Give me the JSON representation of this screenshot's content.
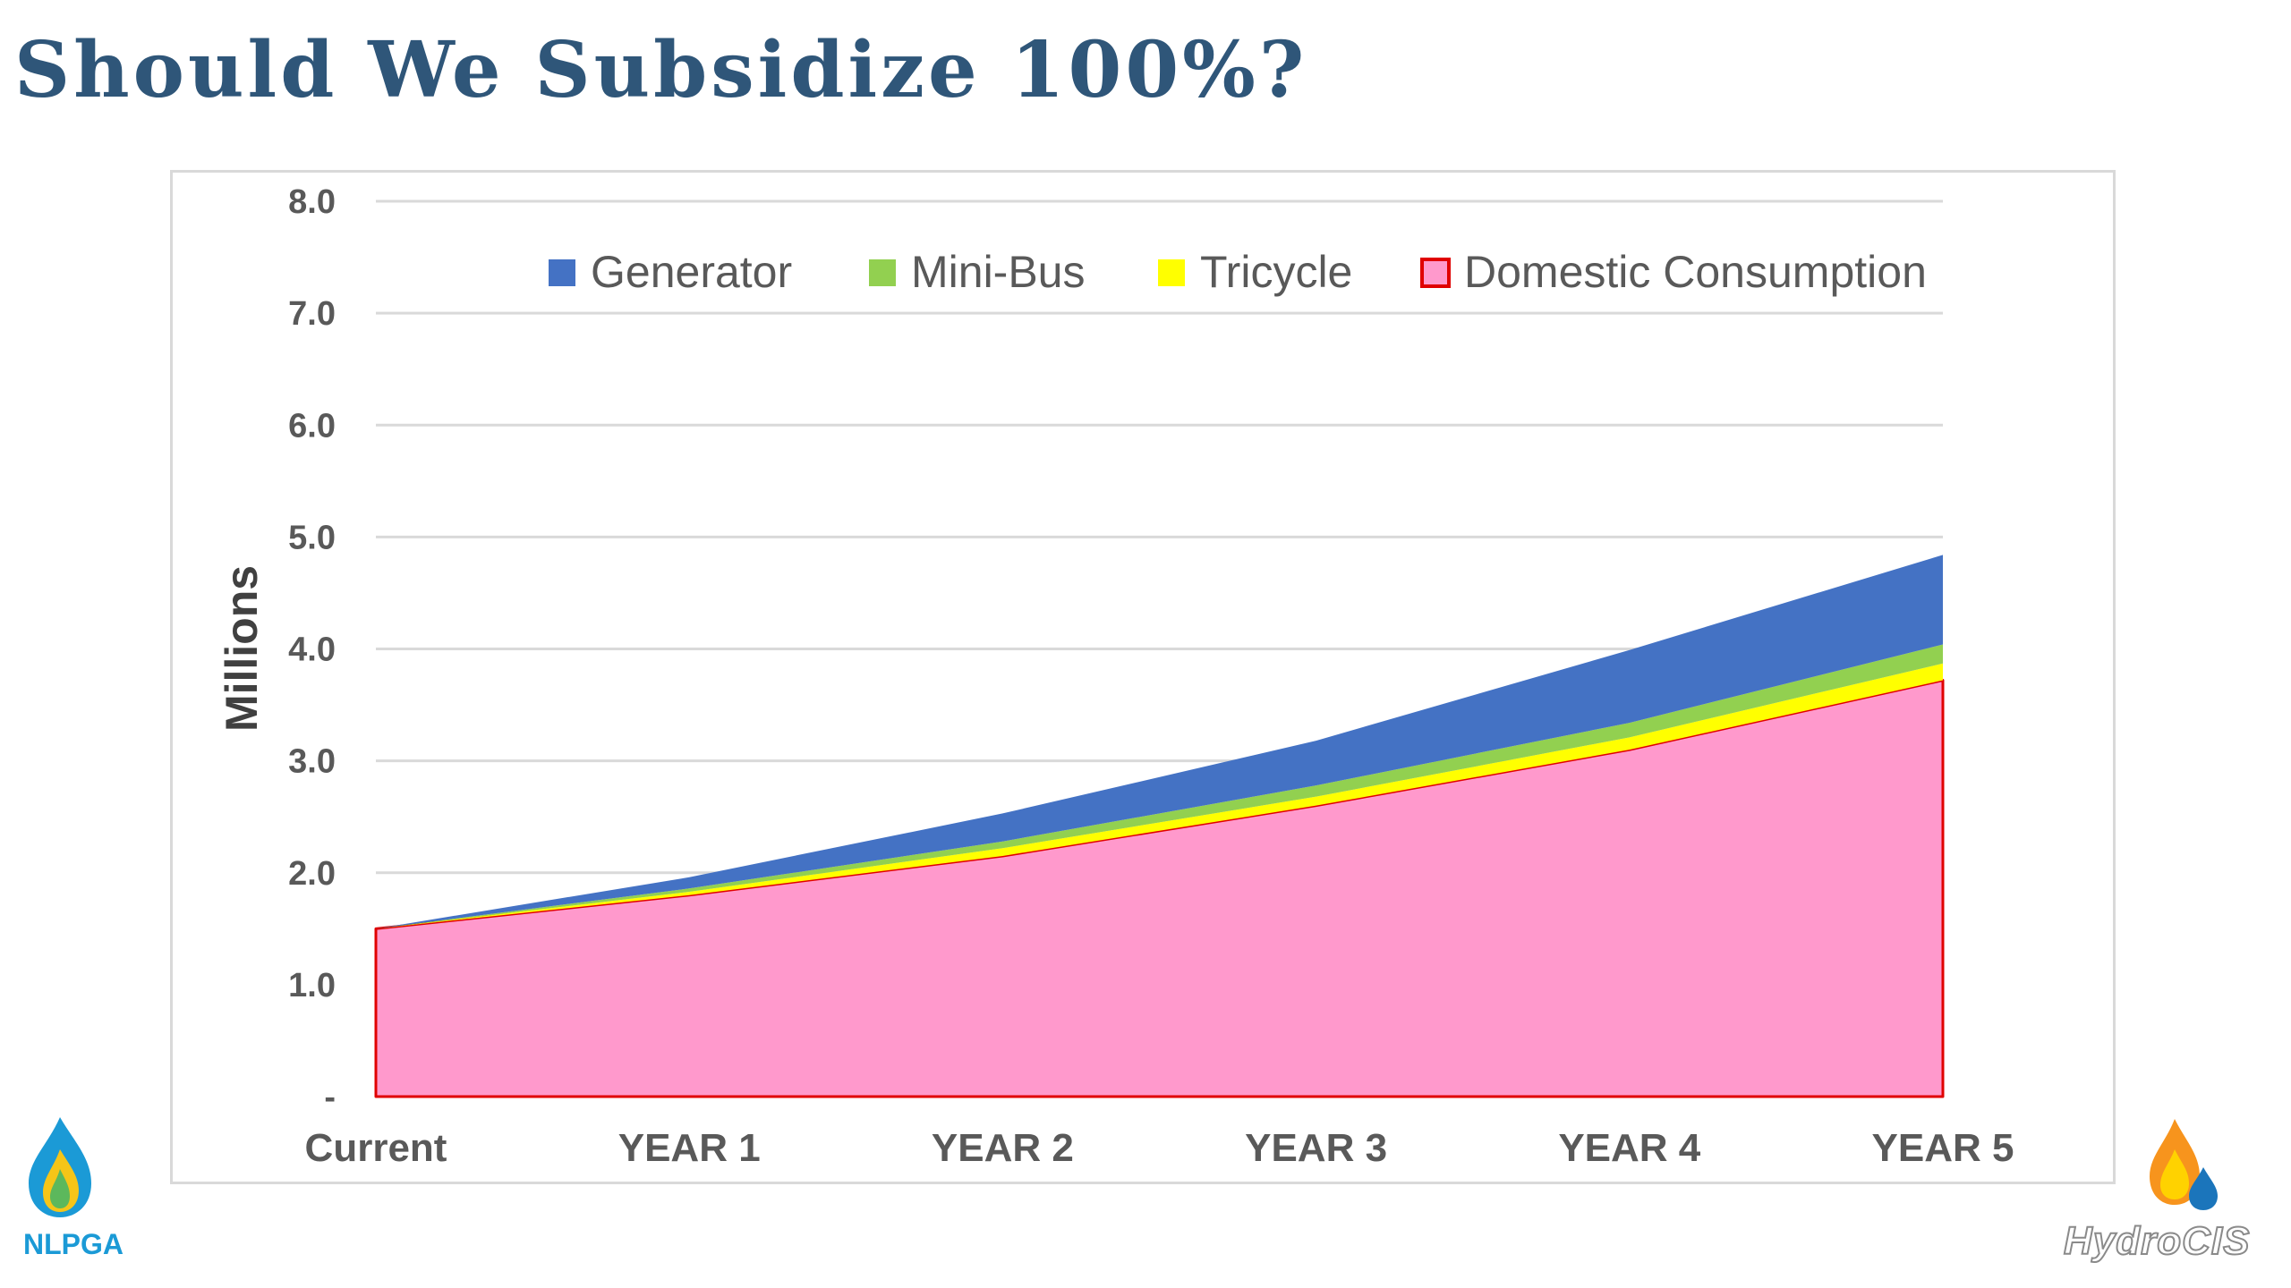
{
  "slide": {
    "title": "Should We Subsidize 100%?"
  },
  "logos": {
    "left_text": "NLPGA",
    "right_text": "HydroCIS"
  },
  "colors": {
    "title": "#2f5679",
    "generator": "#4472c4",
    "mini_bus": "#92d050",
    "tricycle": "#ffff00",
    "domestic_fill": "#ff99cc",
    "domestic_edge": "#e00000",
    "grid": "#d9d9d9"
  },
  "chart_data": {
    "type": "area",
    "stacked": true,
    "title": "",
    "xlabel": "",
    "ylabel": "Millions",
    "categories": [
      "Current",
      "YEAR 1",
      "YEAR 2",
      "YEAR 3",
      "YEAR 4",
      "YEAR 5"
    ],
    "yticks": [
      "-",
      "1.0",
      "2.0",
      "3.0",
      "4.0",
      "5.0",
      "6.0",
      "7.0",
      "8.0"
    ],
    "ylim": [
      0,
      8
    ],
    "grid": true,
    "legend_position": "top",
    "series": [
      {
        "name": "Domestic Consumption",
        "values": [
          1.5,
          1.8,
          2.15,
          2.6,
          3.1,
          3.72
        ]
      },
      {
        "name": "Tricycle",
        "values": [
          0.0,
          0.03,
          0.07,
          0.08,
          0.11,
          0.15
        ]
      },
      {
        "name": "Mini-Bus",
        "values": [
          0.0,
          0.03,
          0.06,
          0.1,
          0.13,
          0.17
        ]
      },
      {
        "name": "Generator",
        "values": [
          0.0,
          0.1,
          0.25,
          0.4,
          0.65,
          0.8
        ]
      }
    ],
    "legend_order": [
      "Generator",
      "Mini-Bus",
      "Tricycle",
      "Domestic Consumption"
    ]
  }
}
